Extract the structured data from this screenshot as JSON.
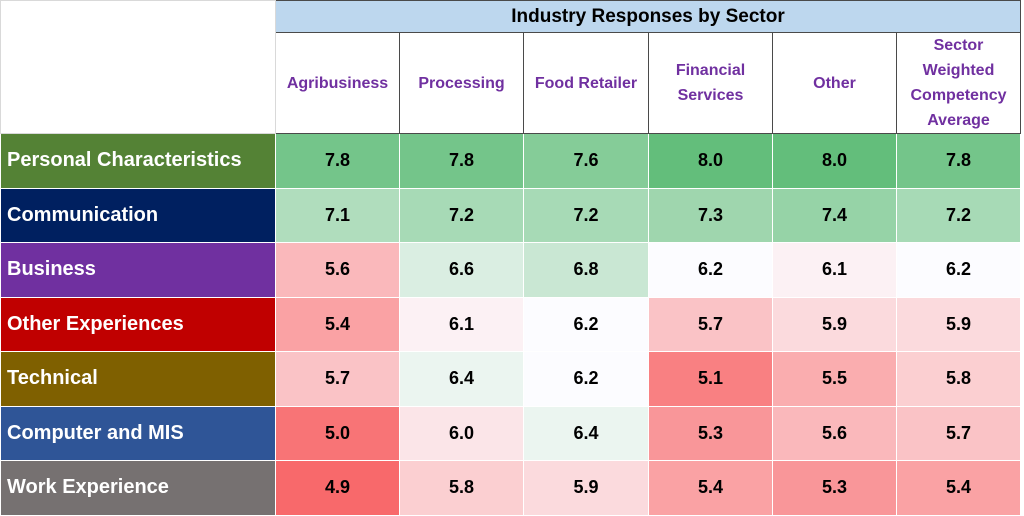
{
  "chart_data": {
    "type": "heatmap",
    "title": "Industry Responses by Sector",
    "columns": [
      "Agribusiness",
      "Processing",
      "Food Retailer",
      "Financial Services",
      "Other",
      "Sector Weighted Competency Average"
    ],
    "rows": [
      {
        "label": "Personal Characteristics",
        "color": "#548235",
        "values": [
          7.8,
          7.8,
          7.6,
          8.0,
          8.0,
          7.8
        ]
      },
      {
        "label": "Communication",
        "color": "#002060",
        "values": [
          7.1,
          7.2,
          7.2,
          7.3,
          7.4,
          7.2
        ]
      },
      {
        "label": "Business",
        "color": "#7030a0",
        "values": [
          5.6,
          6.6,
          6.8,
          6.2,
          6.1,
          6.2
        ]
      },
      {
        "label": "Other Experiences",
        "color": "#c00000",
        "values": [
          5.4,
          6.1,
          6.2,
          5.7,
          5.9,
          5.9
        ]
      },
      {
        "label": "Technical",
        "color": "#7f6000",
        "values": [
          5.7,
          6.4,
          6.2,
          5.1,
          5.5,
          5.8
        ]
      },
      {
        "label": "Computer and MIS",
        "color": "#2f5597",
        "values": [
          5.0,
          6.0,
          6.4,
          5.3,
          5.6,
          5.7
        ]
      },
      {
        "label": "Work Experience",
        "color": "#767171",
        "values": [
          4.9,
          5.8,
          5.9,
          5.4,
          5.3,
          5.4
        ]
      }
    ],
    "color_scale": {
      "low": "#f8696b",
      "mid": "#fcfcff",
      "high": "#63be7b"
    }
  }
}
